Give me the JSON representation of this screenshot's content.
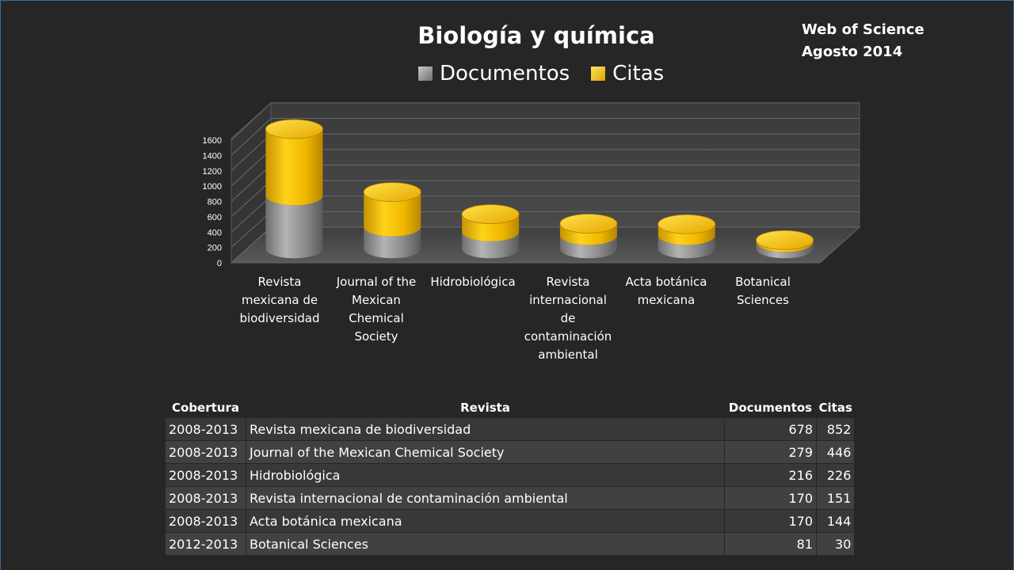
{
  "source": {
    "line1": "Web of Science",
    "line2": "Agosto 2014"
  },
  "legend": {
    "documentos": "Documentos",
    "citas": "Citas"
  },
  "chart_data": {
    "type": "bar",
    "title": "Biología y química",
    "stacked": true,
    "three_d": true,
    "bar_shape": "cylinder",
    "ylim": [
      0,
      1600
    ],
    "yticks": [
      "0",
      "200",
      "400",
      "600",
      "800",
      "1000",
      "1200",
      "1400",
      "1600"
    ],
    "categories": [
      [
        "Revista",
        "mexicana de",
        "biodiversidad"
      ],
      [
        "Journal of the",
        "Mexican",
        "Chemical",
        "Society"
      ],
      [
        "Hidrobiológica"
      ],
      [
        "Revista",
        "internacional",
        "de",
        "contaminación",
        "ambiental"
      ],
      [
        "Acta botánica",
        "mexicana"
      ],
      [
        "Botanical",
        "Sciences"
      ]
    ],
    "series": [
      {
        "name": "Documentos",
        "color": "#8c8c8c",
        "values": [
          678,
          279,
          216,
          170,
          170,
          81
        ]
      },
      {
        "name": "Citas",
        "color": "#f2c300",
        "values": [
          852,
          446,
          226,
          151,
          144,
          30
        ]
      }
    ],
    "legend_position": "top",
    "grid": true
  },
  "table": {
    "headers": [
      "Cobertura",
      "Revista",
      "Documentos",
      "Citas"
    ],
    "rows": [
      [
        "2008-2013",
        "Revista mexicana de biodiversidad",
        "678",
        "852"
      ],
      [
        "2008-2013",
        "Journal of the Mexican Chemical Society",
        "279",
        "446"
      ],
      [
        "2008-2013",
        "Hidrobiológica",
        "216",
        "226"
      ],
      [
        "2008-2013",
        "Revista internacional de contaminación ambiental",
        "170",
        "151"
      ],
      [
        "2008-2013",
        "Acta botánica mexicana",
        "170",
        "144"
      ],
      [
        "2012-2013",
        "Botanical Sciences",
        "81",
        "30"
      ]
    ]
  }
}
